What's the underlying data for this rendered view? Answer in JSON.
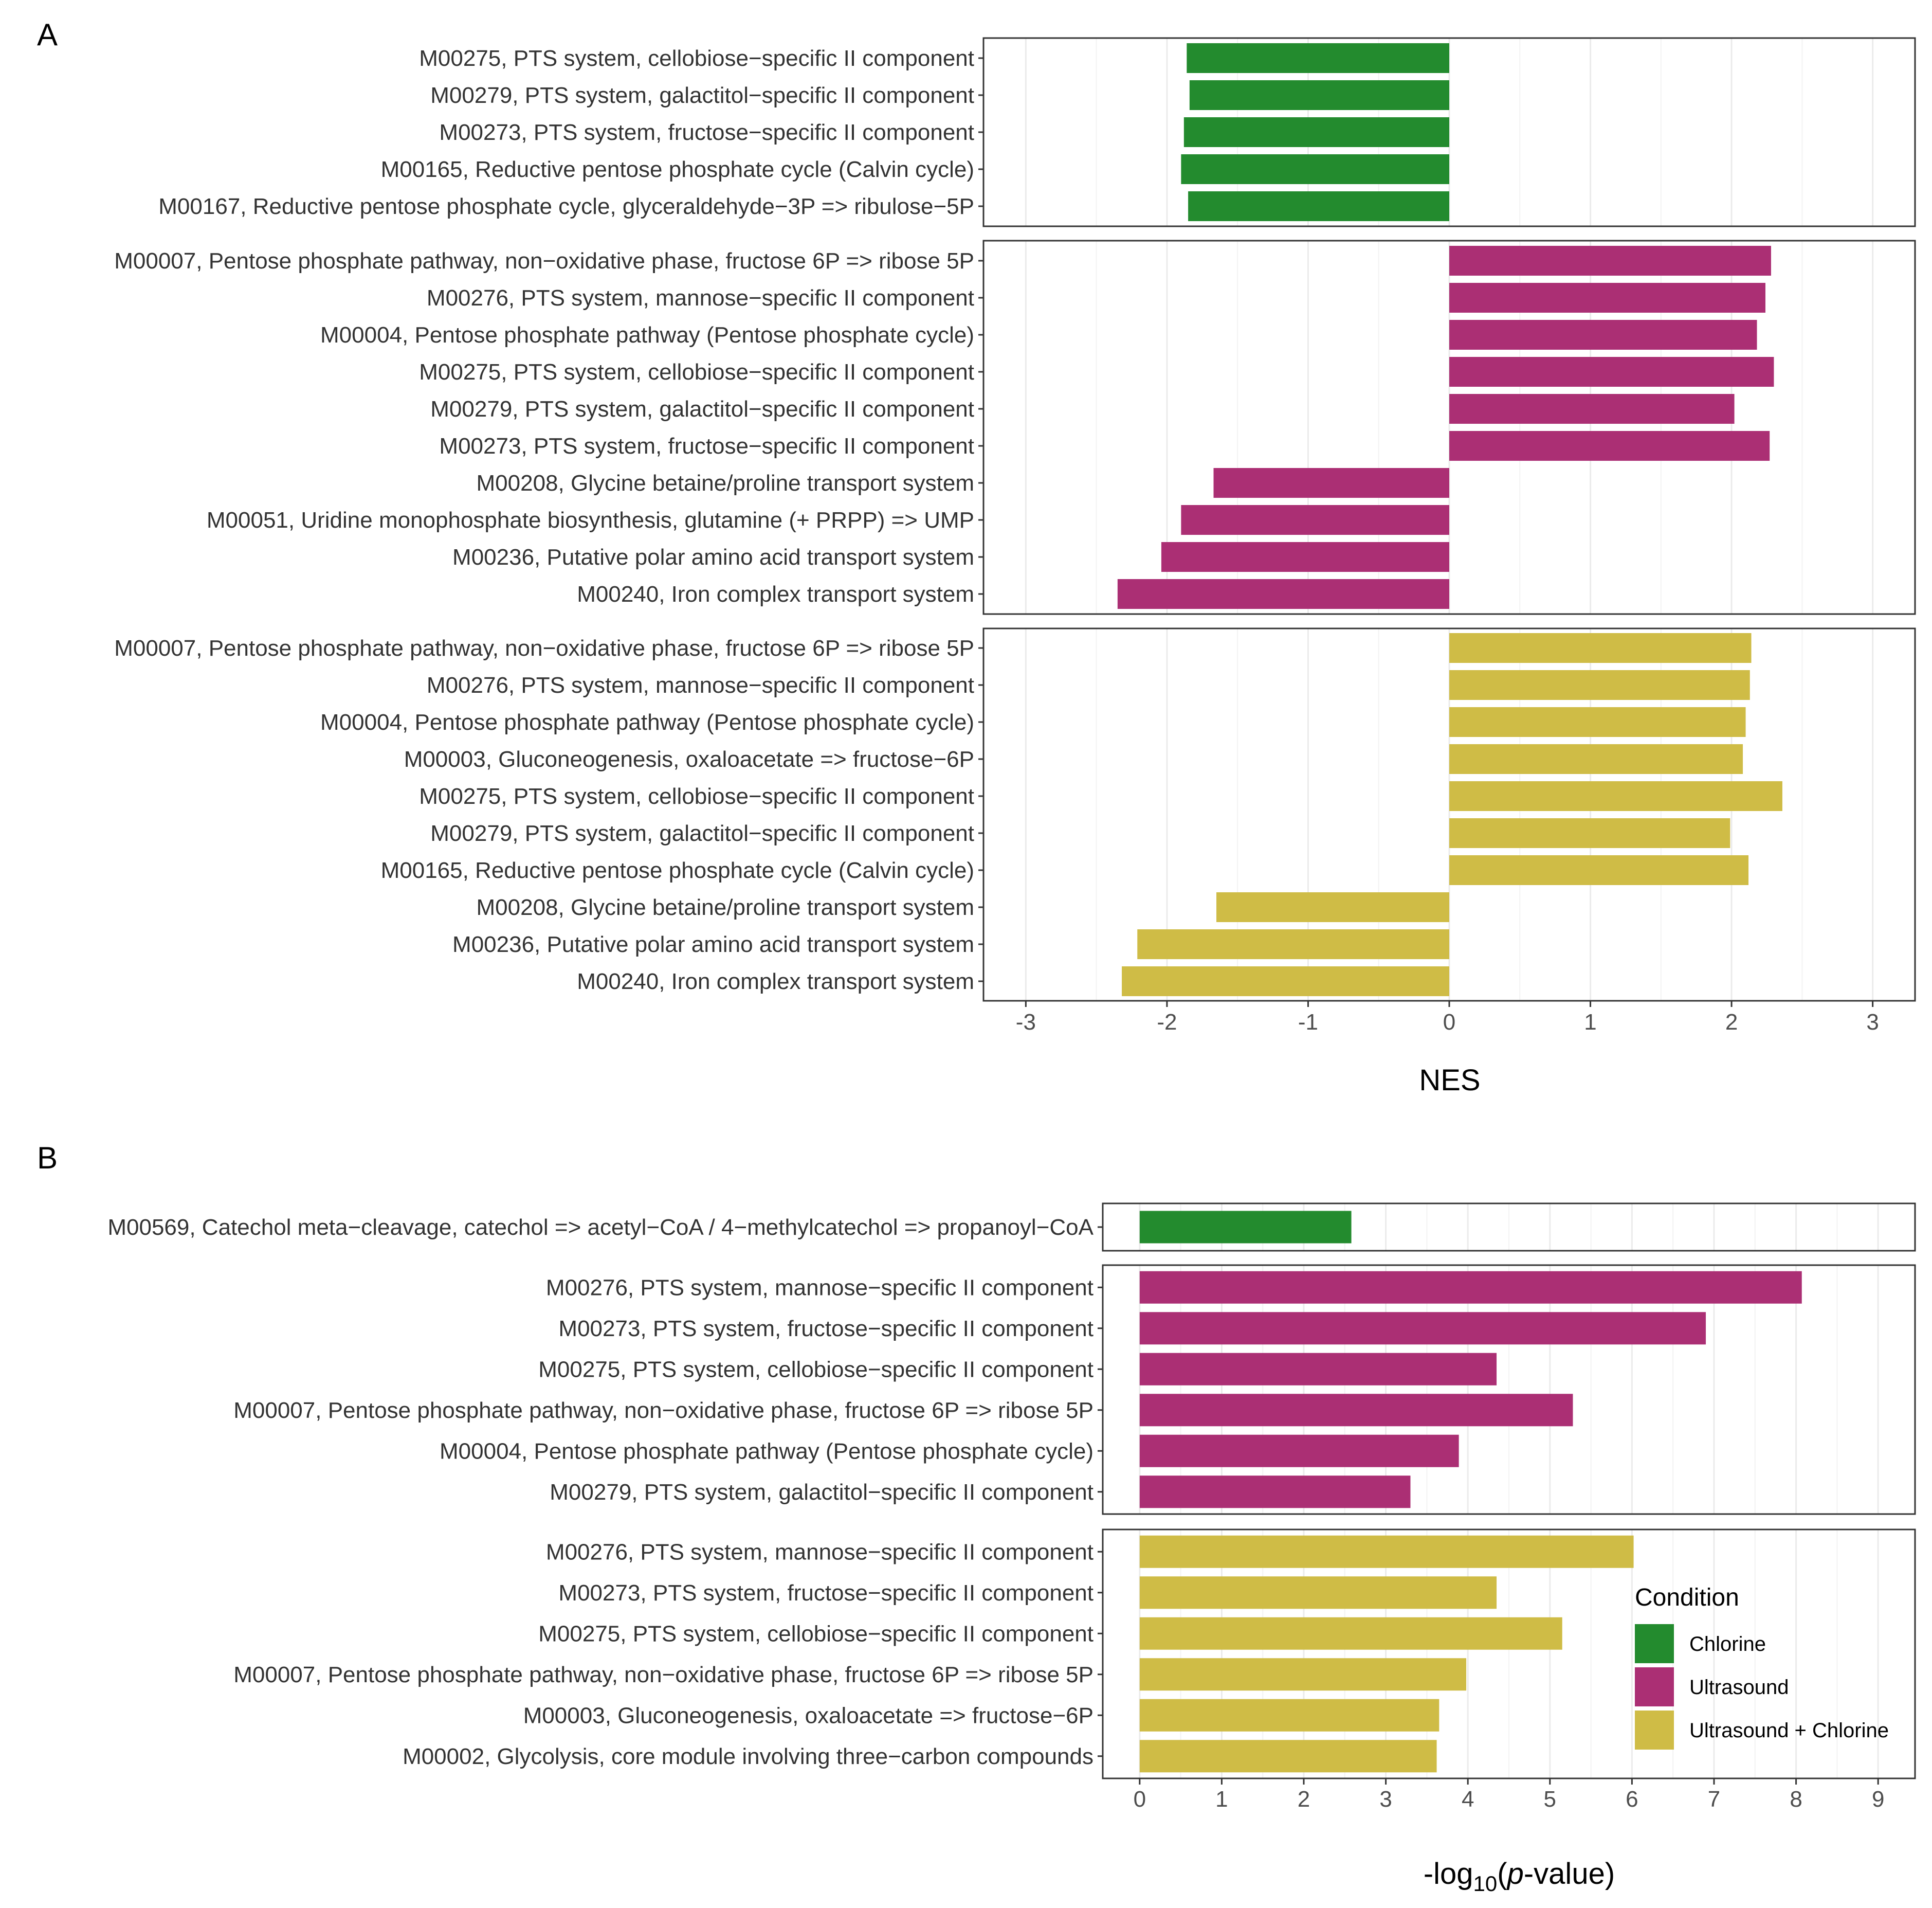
{
  "chart_data": [
    {
      "panel": "A",
      "type": "bar",
      "orientation": "horizontal",
      "xlabel": "NES",
      "xlim": [
        -3.3,
        3.3
      ],
      "xticks": [
        "-3",
        "-2",
        "-1",
        "0",
        "1",
        "2",
        "3"
      ],
      "xtick_values": [
        -3,
        -2,
        -1,
        0,
        1,
        2,
        3
      ],
      "facets": [
        {
          "condition": "Chlorine",
          "labels": [
            "M00275, PTS system, cellobiose−specific II component",
            "M00279, PTS system, galactitol−specific II component",
            "M00273, PTS system, fructose−specific II component",
            "M00165, Reductive pentose phosphate cycle (Calvin cycle)",
            "M00167, Reductive pentose phosphate cycle, glyceraldehyde−3P => ribulose−5P"
          ],
          "values": [
            -1.86,
            -1.84,
            -1.88,
            -1.9,
            -1.85
          ]
        },
        {
          "condition": "Ultrasound",
          "labels": [
            "M00007, Pentose phosphate pathway, non−oxidative phase, fructose 6P => ribose 5P",
            "M00276, PTS system, mannose−specific II component",
            "M00004, Pentose phosphate pathway (Pentose phosphate cycle)",
            "M00275, PTS system, cellobiose−specific II component",
            "M00279, PTS system, galactitol−specific II component",
            "M00273, PTS system, fructose−specific II component",
            "M00208, Glycine betaine/proline transport system",
            "M00051, Uridine monophosphate biosynthesis, glutamine (+ PRPP) => UMP",
            "M00236, Putative polar amino acid transport system",
            "M00240, Iron complex transport system"
          ],
          "values": [
            2.28,
            2.24,
            2.18,
            2.3,
            2.02,
            2.27,
            -1.67,
            -1.9,
            -2.04,
            -2.35
          ]
        },
        {
          "condition": "Ultrasound + Chlorine",
          "labels": [
            "M00007, Pentose phosphate pathway, non−oxidative phase, fructose 6P => ribose 5P",
            "M00276, PTS system, mannose−specific II component",
            "M00004, Pentose phosphate pathway (Pentose phosphate cycle)",
            "M00003, Gluconeogenesis, oxaloacetate => fructose−6P",
            "M00275, PTS system, cellobiose−specific II component",
            "M00279, PTS system, galactitol−specific II component",
            "M00165, Reductive pentose phosphate cycle (Calvin cycle)",
            "M00208, Glycine betaine/proline transport system",
            "M00236, Putative polar amino acid transport system",
            "M00240, Iron complex transport system"
          ],
          "values": [
            2.14,
            2.13,
            2.1,
            2.08,
            2.36,
            1.99,
            2.12,
            -1.65,
            -2.21,
            -2.32
          ]
        }
      ]
    },
    {
      "panel": "B",
      "type": "bar",
      "orientation": "horizontal",
      "xlabel_parts": [
        "-log",
        "10",
        "(",
        "p",
        "-value)"
      ],
      "xlim": [
        -0.45,
        9.45
      ],
      "xticks": [
        "0",
        "1",
        "2",
        "3",
        "4",
        "5",
        "6",
        "7",
        "8",
        "9"
      ],
      "xtick_values": [
        0,
        1,
        2,
        3,
        4,
        5,
        6,
        7,
        8,
        9
      ],
      "facets": [
        {
          "condition": "Chlorine",
          "labels": [
            "M00569, Catechol meta−cleavage, catechol => acetyl−CoA / 4−methylcatechol => propanoyl−CoA"
          ],
          "values": [
            2.58
          ]
        },
        {
          "condition": "Ultrasound",
          "labels": [
            "M00276, PTS system, mannose−specific II component",
            "M00273, PTS system, fructose−specific II component",
            "M00275, PTS system, cellobiose−specific II component",
            "M00007, Pentose phosphate pathway, non−oxidative phase, fructose 6P => ribose 5P",
            "M00004, Pentose phosphate pathway (Pentose phosphate cycle)",
            "M00279, PTS system, galactitol−specific II component"
          ],
          "values": [
            8.07,
            6.9,
            4.35,
            5.28,
            3.89,
            3.3
          ]
        },
        {
          "condition": "Ultrasound + Chlorine",
          "labels": [
            "M00276, PTS system, mannose−specific II component",
            "M00273, PTS system, fructose−specific II component",
            "M00275, PTS system, cellobiose−specific II component",
            "M00007, Pentose phosphate pathway, non−oxidative phase, fructose 6P => ribose 5P",
            "M00003, Gluconeogenesis, oxaloacetate => fructose−6P",
            "M00002, Glycolysis, core module involving three−carbon compounds"
          ],
          "values": [
            6.02,
            4.35,
            5.15,
            3.98,
            3.65,
            3.62
          ]
        }
      ]
    }
  ],
  "legend": {
    "title": "Condition",
    "items": [
      {
        "label": "Chlorine",
        "color": "#238b2e"
      },
      {
        "label": "Ultrasound",
        "color": "#ab2f74"
      },
      {
        "label": "Ultrasound + Chlorine",
        "color": "#cfbc46"
      }
    ]
  }
}
